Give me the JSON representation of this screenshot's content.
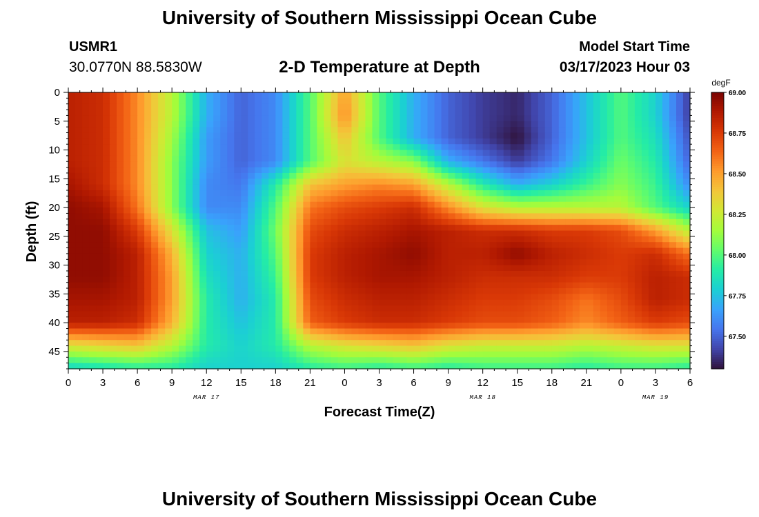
{
  "header": {
    "title": "University of Southern Mississippi Ocean Cube",
    "station_id": "USMR1",
    "station_coords": "30.0770N  88.5830W",
    "plot_title": "2-D Temperature at Depth",
    "model_start_label": "Model Start Time",
    "model_start_value": "03/17/2023 Hour 03"
  },
  "footer": {
    "title": "University of Southern Mississippi Ocean Cube"
  },
  "chart_data": {
    "type": "heatmap",
    "xlabel": "Forecast Time(Z)",
    "ylabel": "Depth (ft)",
    "x_tick_labels": [
      "0",
      "3",
      "6",
      "9",
      "12",
      "15",
      "18",
      "21",
      "0",
      "3",
      "6",
      "9",
      "12",
      "15",
      "18",
      "21",
      "0",
      "3",
      "6"
    ],
    "date_labels": [
      {
        "label": "MAR 17",
        "tick_index": 4
      },
      {
        "label": "MAR 18",
        "tick_index": 12
      },
      {
        "label": "MAR 19",
        "tick_index": 17
      }
    ],
    "y_ticks": [
      0,
      5,
      10,
      15,
      20,
      25,
      30,
      35,
      40,
      45
    ],
    "ylim": [
      0,
      48
    ],
    "xlim_hours": [
      0,
      54
    ],
    "colorbar": {
      "unit": "degF",
      "min": 67.3,
      "max": 69.0,
      "ticks": [
        "69.00",
        "68.75",
        "68.50",
        "68.25",
        "68.00",
        "67.75",
        "67.50"
      ],
      "colors": [
        "#30123b",
        "#4145ab",
        "#4675ed",
        "#39a2fc",
        "#1bcfd4",
        "#24eca6",
        "#61fc6c",
        "#a4fc3b",
        "#d1e834",
        "#f3c63a",
        "#fe9b2d",
        "#f36315",
        "#d93806",
        "#b11901",
        "#7a0402"
      ]
    },
    "depth_levels_ft": [
      0,
      4,
      8,
      12,
      16,
      20,
      24,
      28,
      32,
      36,
      40,
      44,
      48
    ],
    "time_hours": [
      0,
      3,
      6,
      9,
      12,
      15,
      18,
      21,
      24,
      27,
      30,
      33,
      36,
      39,
      42,
      45,
      48,
      51,
      54
    ],
    "values_degF": [
      [
        68.85,
        68.8,
        68.55,
        68.2,
        67.7,
        67.5,
        67.6,
        68.0,
        68.5,
        68.0,
        67.7,
        67.5,
        67.4,
        67.35,
        67.5,
        67.75,
        68.0,
        67.8,
        67.4
      ],
      [
        68.85,
        68.8,
        68.55,
        68.2,
        67.7,
        67.5,
        67.6,
        68.0,
        68.55,
        68.0,
        67.7,
        67.5,
        67.4,
        67.35,
        67.5,
        67.75,
        68.0,
        67.8,
        67.4
      ],
      [
        68.85,
        68.8,
        68.55,
        68.15,
        67.65,
        67.5,
        67.6,
        68.0,
        68.4,
        68.0,
        67.7,
        67.5,
        67.4,
        67.3,
        67.5,
        67.75,
        68.0,
        67.85,
        67.45
      ],
      [
        68.85,
        68.8,
        68.55,
        68.1,
        67.65,
        67.5,
        67.6,
        68.0,
        68.3,
        68.2,
        68.1,
        67.7,
        67.55,
        67.4,
        67.55,
        67.8,
        68.05,
        67.9,
        67.5
      ],
      [
        68.9,
        68.8,
        68.55,
        68.1,
        67.6,
        67.55,
        67.9,
        68.4,
        68.5,
        68.55,
        68.5,
        68.2,
        67.9,
        67.7,
        67.8,
        67.95,
        68.1,
        67.95,
        67.6
      ],
      [
        68.95,
        68.9,
        68.6,
        68.1,
        67.6,
        67.6,
        68.0,
        68.6,
        68.7,
        68.75,
        68.8,
        68.55,
        68.3,
        68.2,
        68.2,
        68.2,
        68.2,
        68.0,
        67.8
      ],
      [
        68.95,
        68.95,
        68.75,
        68.3,
        67.75,
        67.65,
        68.05,
        68.7,
        68.8,
        68.85,
        68.9,
        68.85,
        68.8,
        68.8,
        68.75,
        68.75,
        68.7,
        68.5,
        68.2
      ],
      [
        68.95,
        68.95,
        68.85,
        68.45,
        67.8,
        67.7,
        68.0,
        68.75,
        68.85,
        68.9,
        68.95,
        68.85,
        68.85,
        68.95,
        68.85,
        68.8,
        68.75,
        68.8,
        68.6
      ],
      [
        68.95,
        68.95,
        68.85,
        68.5,
        67.85,
        67.7,
        67.95,
        68.75,
        68.85,
        68.9,
        68.9,
        68.85,
        68.8,
        68.8,
        68.8,
        68.75,
        68.75,
        68.85,
        68.8
      ],
      [
        68.9,
        68.9,
        68.85,
        68.5,
        67.9,
        67.7,
        67.9,
        68.7,
        68.8,
        68.85,
        68.85,
        68.8,
        68.75,
        68.75,
        68.7,
        68.6,
        68.7,
        68.85,
        68.8
      ],
      [
        68.85,
        68.85,
        68.8,
        68.45,
        67.9,
        67.75,
        67.9,
        68.65,
        68.75,
        68.8,
        68.8,
        68.75,
        68.7,
        68.7,
        68.65,
        68.55,
        68.65,
        68.75,
        68.7
      ],
      [
        68.3,
        68.35,
        68.4,
        68.2,
        67.9,
        67.8,
        67.9,
        68.2,
        68.3,
        68.35,
        68.4,
        68.3,
        68.25,
        68.25,
        68.25,
        68.2,
        68.25,
        68.3,
        68.3
      ],
      [
        67.8,
        67.85,
        67.9,
        67.9,
        67.8,
        67.8,
        67.8,
        67.9,
        67.95,
        67.9,
        67.95,
        67.9,
        67.95,
        67.95,
        67.95,
        67.9,
        67.95,
        67.95,
        67.9
      ]
    ]
  }
}
